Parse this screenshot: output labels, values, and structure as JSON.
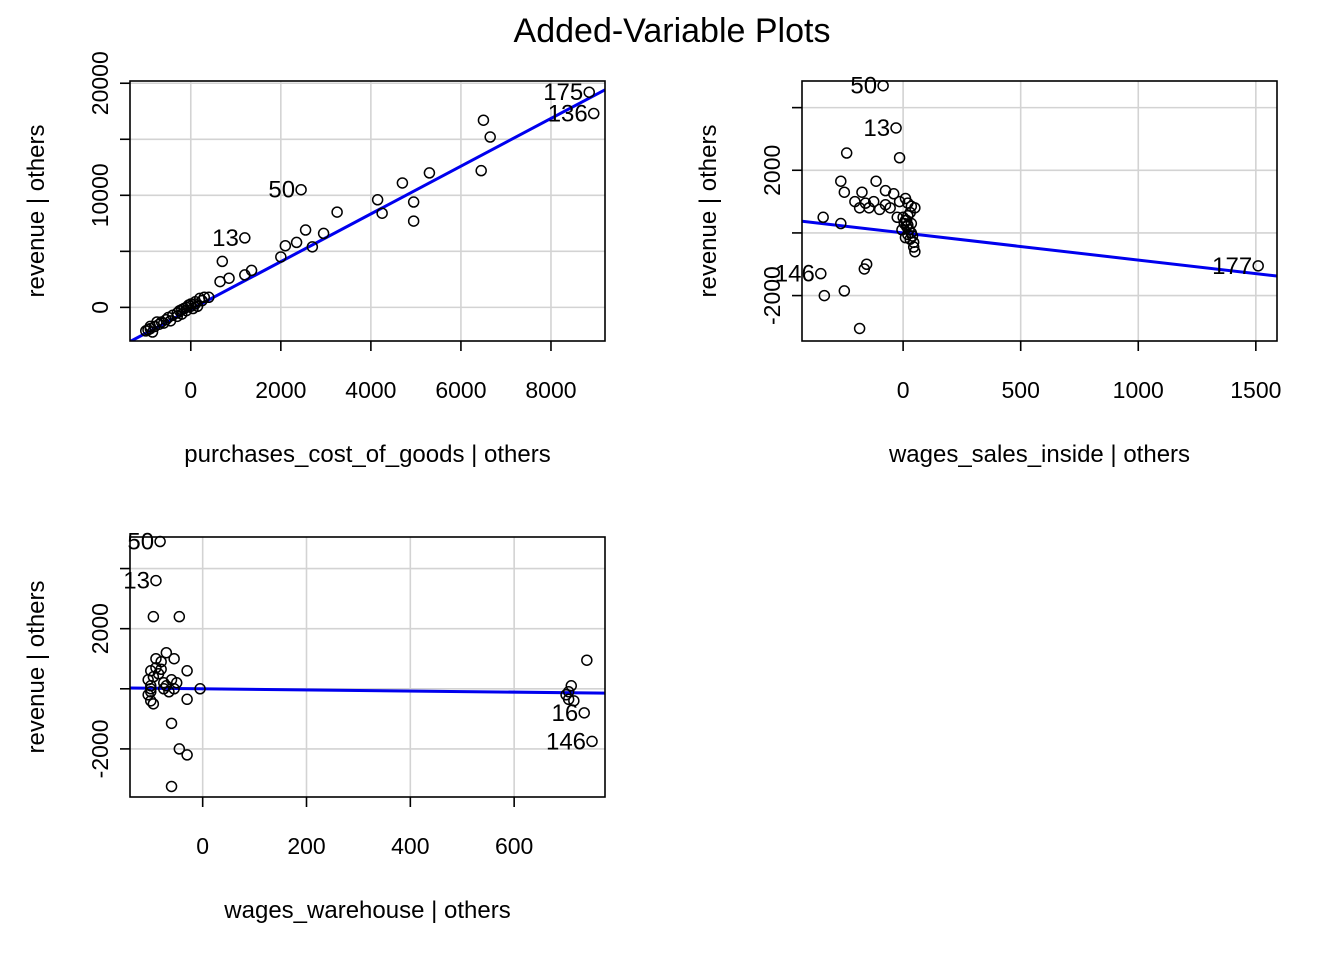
{
  "figure_title": "Added-Variable Plots",
  "chart_data": [
    {
      "type": "scatter",
      "title": "",
      "xlabel": "purchases_cost_of_goods | others",
      "ylabel": "revenue  | others",
      "xlim": [
        -1350,
        9200
      ],
      "ylim": [
        -3000,
        20200
      ],
      "xticks": [
        0,
        2000,
        4000,
        6000,
        8000
      ],
      "yticks": [
        0,
        10000,
        20000
      ],
      "xgrid": [
        0,
        2000,
        4000,
        6000,
        8000
      ],
      "ygrid": [
        0,
        5000,
        10000,
        15000,
        20000
      ],
      "yticklines": [
        0,
        5000,
        10000,
        15000,
        20000
      ],
      "fit_line": {
        "slope": 2.13,
        "intercept": -179
      },
      "points": [
        [
          8850,
          19200
        ],
        [
          8950,
          17300
        ],
        [
          6500,
          16700
        ],
        [
          6650,
          15200
        ],
        [
          6450,
          12200
        ],
        [
          5300,
          12000
        ],
        [
          4700,
          11100
        ],
        [
          4150,
          9600
        ],
        [
          4950,
          9400
        ],
        [
          4250,
          8400
        ],
        [
          3250,
          8500
        ],
        [
          4950,
          7700
        ],
        [
          2450,
          10500
        ],
        [
          1200,
          6200
        ],
        [
          2550,
          6900
        ],
        [
          2950,
          6600
        ],
        [
          2350,
          5800
        ],
        [
          2100,
          5500
        ],
        [
          2700,
          5400
        ],
        [
          700,
          4100
        ],
        [
          2000,
          4500
        ],
        [
          1350,
          3300
        ],
        [
          1200,
          2900
        ],
        [
          850,
          2600
        ],
        [
          650,
          2300
        ],
        [
          300,
          900
        ],
        [
          200,
          800
        ],
        [
          100,
          500
        ],
        [
          0,
          300
        ],
        [
          -50,
          200
        ],
        [
          -100,
          0
        ],
        [
          -150,
          -100
        ],
        [
          -200,
          -200
        ],
        [
          -250,
          -300
        ],
        [
          -300,
          -500
        ],
        [
          -400,
          -700
        ],
        [
          -500,
          -900
        ],
        [
          -550,
          -1100
        ],
        [
          -650,
          -1300
        ],
        [
          -700,
          -1500
        ],
        [
          -800,
          -1700
        ],
        [
          -900,
          -1900
        ],
        [
          -950,
          -2000
        ],
        [
          -1000,
          -2100
        ],
        [
          -850,
          -2200
        ],
        [
          -750,
          -1300
        ],
        [
          150,
          100
        ],
        [
          250,
          600
        ],
        [
          50,
          -100
        ],
        [
          -100,
          -300
        ],
        [
          400,
          900
        ],
        [
          -300,
          -800
        ],
        [
          -450,
          -1200
        ],
        [
          -900,
          -1700
        ],
        [
          -600,
          -1400
        ],
        [
          -200,
          -600
        ],
        [
          0,
          100
        ],
        [
          100,
          300
        ]
      ],
      "point_labels": [
        {
          "text": "175",
          "x": 8850,
          "y": 19200
        },
        {
          "text": "136",
          "x": 8950,
          "y": 17300
        },
        {
          "text": "50",
          "x": 2450,
          "y": 10500
        },
        {
          "text": "13",
          "x": 1200,
          "y": 6200
        }
      ]
    },
    {
      "type": "scatter",
      "title": "",
      "xlabel": "wages_sales_inside | others",
      "ylabel": "revenue  | others",
      "xlim": [
        -430,
        1590
      ],
      "ylim": [
        -3450,
        4850
      ],
      "xticks": [
        0,
        500,
        1000,
        1500
      ],
      "yticks": [
        -2000,
        2000
      ],
      "xgrid": [
        0,
        500,
        1000,
        1500
      ],
      "ygrid": [
        -2000,
        0,
        2000,
        4000
      ],
      "yticklines": [
        -2000,
        0,
        2000,
        4000
      ],
      "fit_line": {
        "slope": -0.866,
        "intercept": 0
      },
      "points": [
        [
          -85,
          4700
        ],
        [
          -30,
          3350
        ],
        [
          -15,
          2400
        ],
        [
          -240,
          2550
        ],
        [
          -265,
          1650
        ],
        [
          -115,
          1650
        ],
        [
          -250,
          1300
        ],
        [
          -75,
          1350
        ],
        [
          -40,
          1250
        ],
        [
          -175,
          1300
        ],
        [
          -205,
          1000
        ],
        [
          -160,
          950
        ],
        [
          -125,
          1000
        ],
        [
          -75,
          900
        ],
        [
          -185,
          800
        ],
        [
          -145,
          800
        ],
        [
          -55,
          800
        ],
        [
          -15,
          1000
        ],
        [
          10,
          1100
        ],
        [
          20,
          950
        ],
        [
          35,
          850
        ],
        [
          50,
          800
        ],
        [
          30,
          650
        ],
        [
          20,
          550
        ],
        [
          10,
          400
        ],
        [
          5,
          300
        ],
        [
          15,
          200
        ],
        [
          25,
          100
        ],
        [
          35,
          0
        ],
        [
          40,
          -100
        ],
        [
          45,
          -300
        ],
        [
          30,
          -200
        ],
        [
          20,
          -50
        ],
        [
          10,
          -150
        ],
        [
          -5,
          100
        ],
        [
          -100,
          750
        ],
        [
          -340,
          500
        ],
        [
          -265,
          300
        ],
        [
          -155,
          -1000
        ],
        [
          -165,
          -1150
        ],
        [
          -350,
          -1300
        ],
        [
          -250,
          -1850
        ],
        [
          -335,
          -2000
        ],
        [
          -185,
          -3050
        ],
        [
          1510,
          -1050
        ],
        [
          45,
          -450
        ],
        [
          50,
          -600
        ],
        [
          15,
          400
        ],
        [
          0,
          500
        ],
        [
          -25,
          500
        ],
        [
          35,
          300
        ],
        [
          20,
          250
        ]
      ],
      "point_labels": [
        {
          "text": "50",
          "x": -85,
          "y": 4700
        },
        {
          "text": "13",
          "x": -30,
          "y": 3350
        },
        {
          "text": "146",
          "x": -350,
          "y": -1300
        },
        {
          "text": "177",
          "x": 1510,
          "y": -1050
        }
      ]
    },
    {
      "type": "scatter",
      "title": "",
      "xlabel": "wages_warehouse | others",
      "ylabel": "revenue  | others",
      "xlim": [
        -140,
        775
      ],
      "ylim": [
        -3600,
        5050
      ],
      "xticks": [
        0,
        200,
        400,
        600
      ],
      "yticks": [
        -2000,
        2000
      ],
      "xgrid": [
        0,
        200,
        400,
        600
      ],
      "ygrid": [
        -2000,
        0,
        2000,
        4000
      ],
      "yticklines": [
        -2000,
        0,
        2000,
        4000
      ],
      "fit_line": {
        "slope": -0.185,
        "intercept": 0
      },
      "points": [
        [
          -82,
          4900
        ],
        [
          -90,
          3600
        ],
        [
          -95,
          2400
        ],
        [
          -45,
          2400
        ],
        [
          -70,
          1200
        ],
        [
          -90,
          1000
        ],
        [
          -80,
          900
        ],
        [
          -55,
          1000
        ],
        [
          -30,
          600
        ],
        [
          -100,
          600
        ],
        [
          -85,
          500
        ],
        [
          -95,
          400
        ],
        [
          -60,
          300
        ],
        [
          -75,
          200
        ],
        [
          -100,
          100
        ],
        [
          -105,
          300
        ],
        [
          -70,
          100
        ],
        [
          -50,
          200
        ],
        [
          -100,
          -100
        ],
        [
          -105,
          -200
        ],
        [
          -100,
          -400
        ],
        [
          -95,
          -500
        ],
        [
          -75,
          0
        ],
        [
          -65,
          -100
        ],
        [
          -55,
          0
        ],
        [
          -5,
          0
        ],
        [
          -30,
          -350
        ],
        [
          -60,
          -1150
        ],
        [
          -45,
          -2000
        ],
        [
          -30,
          -2200
        ],
        [
          -60,
          -3250
        ],
        [
          740,
          950
        ],
        [
          710,
          100
        ],
        [
          705,
          -100
        ],
        [
          700,
          -200
        ],
        [
          705,
          -350
        ],
        [
          715,
          -400
        ],
        [
          735,
          -800
        ],
        [
          750,
          -1750
        ],
        [
          -90,
          700
        ],
        [
          -80,
          650
        ],
        [
          -100,
          0
        ]
      ],
      "point_labels": [
        {
          "text": "50",
          "x": -82,
          "y": 4900
        },
        {
          "text": "13",
          "x": -90,
          "y": 3600
        },
        {
          "text": "16",
          "x": 735,
          "y": -800
        },
        {
          "text": "146",
          "x": 750,
          "y": -1750
        }
      ]
    }
  ]
}
